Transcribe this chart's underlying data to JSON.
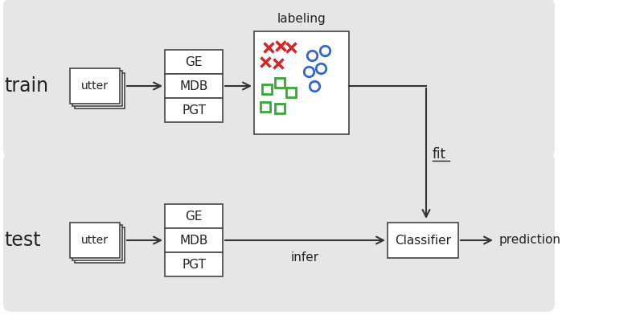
{
  "bg_color": "#e6e6e6",
  "box_color": "#ffffff",
  "box_edge": "#444444",
  "arrow_color": "#333333",
  "text_color": "#222222",
  "red_color": "#dd2222",
  "blue_color": "#3366cc",
  "green_color": "#33aa33",
  "train_label": "train",
  "test_label": "test",
  "utter_label": "utter",
  "ge_label": "GE",
  "mdb_label": "MDB",
  "pgt_label": "PGT",
  "labeling_label": "labeling",
  "fit_label": "fit",
  "infer_label": "infer",
  "classifier_label": "Classifier",
  "prediction_label": "prediction",
  "fig_width": 7.96,
  "fig_height": 3.92,
  "dpi": 100
}
